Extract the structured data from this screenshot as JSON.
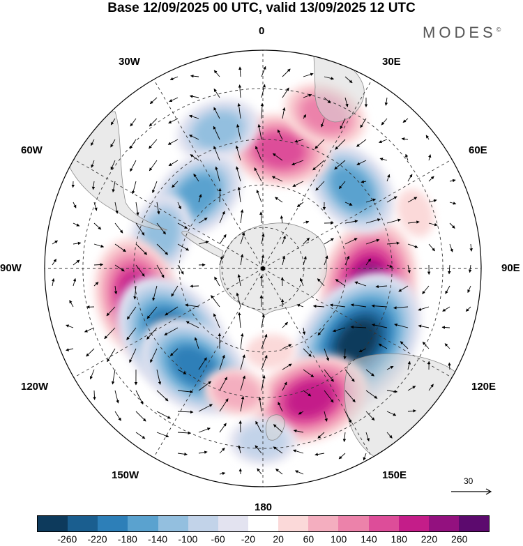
{
  "title": "Base 12/09/2025 00 UTC, valid 13/09/2025 12 UTC",
  "brand": "MODES",
  "brand_mark": "©",
  "longitude_labels": [
    "0",
    "30E",
    "60E",
    "90E",
    "120E",
    "150E",
    "180",
    "150W",
    "120W",
    "90W",
    "60W",
    "30W"
  ],
  "reference_vector": {
    "value": "30",
    "icon": "arrow-right-icon"
  },
  "colorbar": {
    "colors": [
      "#0d3a5c",
      "#1a5e8f",
      "#2d7fb8",
      "#5aa2cf",
      "#93bfdf",
      "#c2d3e9",
      "#e3e3f0",
      "#ffffff",
      "#fbd9d9",
      "#f4aebf",
      "#ec82aa",
      "#dd4d99",
      "#c41d89",
      "#93117f",
      "#5c0a6e"
    ],
    "ticks": [
      "-260",
      "-220",
      "-180",
      "-140",
      "-100",
      "-60",
      "-20",
      "20",
      "60",
      "100",
      "140",
      "180",
      "220",
      "260"
    ]
  },
  "map_data": {
    "projection": "south-polar-stereographic",
    "field": "height anomaly with wind vectors",
    "anomalies": [
      {
        "lon_deg": 100,
        "lat_deg": -52,
        "value": 240
      },
      {
        "lon_deg": 128,
        "lat_deg": -48,
        "value": -260
      },
      {
        "lon_deg": 160,
        "lat_deg": -42,
        "value": 180
      },
      {
        "lon_deg": 48,
        "lat_deg": -48,
        "value": -140
      },
      {
        "lon_deg": 8,
        "lat_deg": -48,
        "value": 140
      },
      {
        "lon_deg": 22,
        "lat_deg": -34,
        "value": 100
      },
      {
        "lon_deg": -18,
        "lat_deg": -40,
        "value": -100
      },
      {
        "lon_deg": -42,
        "lat_deg": -55,
        "value": -140
      },
      {
        "lon_deg": -72,
        "lat_deg": -52,
        "value": -100
      },
      {
        "lon_deg": -103,
        "lat_deg": -45,
        "value": 200
      },
      {
        "lon_deg": -128,
        "lat_deg": -50,
        "value": -220
      },
      {
        "lon_deg": -145,
        "lat_deg": -48,
        "value": -180
      },
      {
        "lon_deg": -168,
        "lat_deg": -46,
        "value": 60
      },
      {
        "lon_deg": -180,
        "lat_deg": -32,
        "value": -60
      },
      {
        "lon_deg": 175,
        "lat_deg": -60,
        "value": 40
      },
      {
        "lon_deg": 70,
        "lat_deg": -35,
        "value": 40
      }
    ]
  }
}
